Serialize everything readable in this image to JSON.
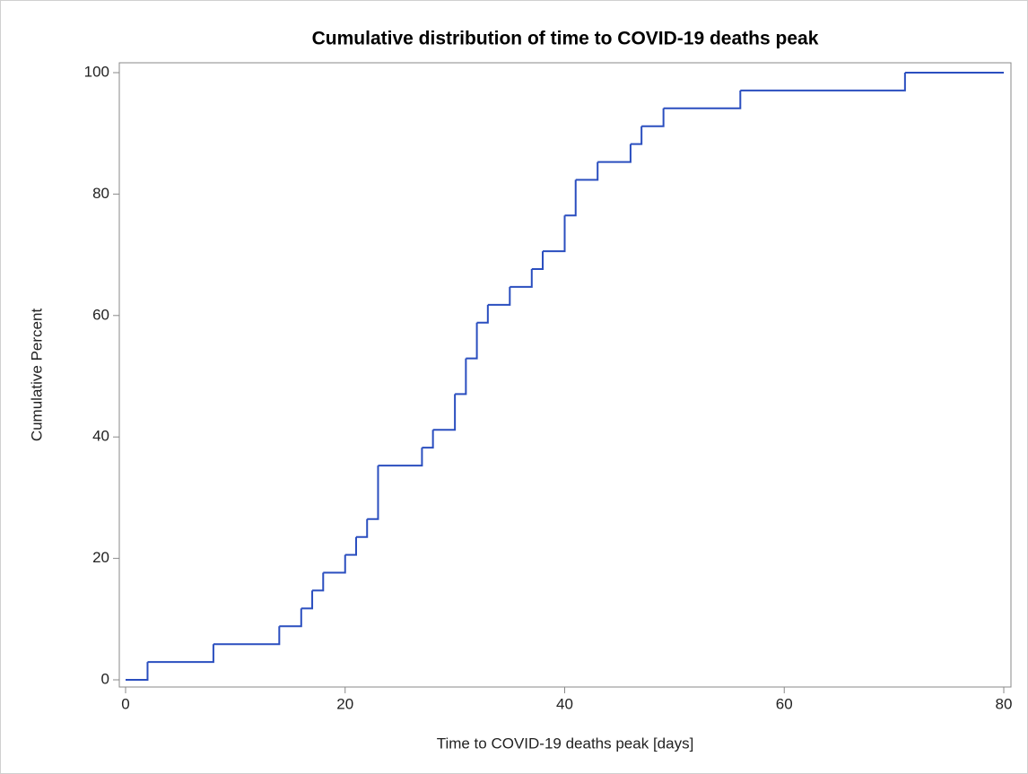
{
  "chart_data": {
    "type": "step",
    "title": "Cumulative distribution of time to COVID-19 deaths peak",
    "x_label": "Time to COVID-19 deaths peak [days]",
    "y_label": "Cumulative Percent",
    "x": [
      0,
      2,
      8,
      14,
      16,
      17,
      18,
      20,
      21,
      22,
      23,
      27,
      28,
      30,
      31,
      32,
      33,
      35,
      37,
      38,
      40,
      41,
      43,
      46,
      47,
      49,
      56,
      71,
      80
    ],
    "series": [
      {
        "color": "#2a4ebf",
        "values": [
          0,
          2.94,
          5.88,
          8.82,
          11.76,
          14.71,
          17.65,
          20.59,
          23.53,
          26.47,
          35.29,
          38.24,
          41.18,
          47.06,
          52.94,
          58.82,
          61.76,
          64.71,
          67.65,
          70.59,
          76.47,
          82.35,
          85.29,
          88.24,
          91.18,
          94.12,
          97.06,
          100,
          100
        ]
      }
    ],
    "xlim": [
      0,
      80
    ],
    "xticks": [
      0,
      20,
      40,
      60,
      80
    ],
    "ylim": [
      0,
      100
    ],
    "yticks": [
      0,
      20,
      40,
      60,
      80,
      100
    ],
    "grid": false
  }
}
